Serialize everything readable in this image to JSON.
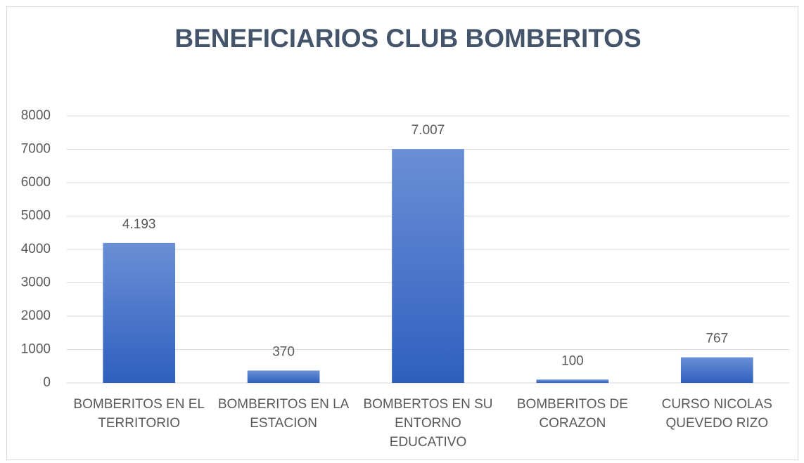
{
  "chart_data": {
    "type": "bar",
    "title": "BENEFICIARIOS CLUB BOMBERITOS",
    "categories": [
      "BOMBERITOS EN EL TERRITORIO",
      "BOMBERITOS EN LA ESTACION",
      "BOMBERTOS EN SU ENTORNO EDUCATIVO",
      "BOMBERITOS DE CORAZON",
      "CURSO NICOLAS QUEVEDO RIZO"
    ],
    "values": [
      4193,
      370,
      7007,
      100,
      767
    ],
    "value_labels": [
      "4.193",
      "370",
      "7.007",
      "100",
      "767"
    ],
    "color": "#4472c4",
    "ylim": [
      0,
      8000
    ],
    "yticks": [
      0,
      1000,
      2000,
      3000,
      4000,
      5000,
      6000,
      7000,
      8000
    ],
    "grid": true
  }
}
